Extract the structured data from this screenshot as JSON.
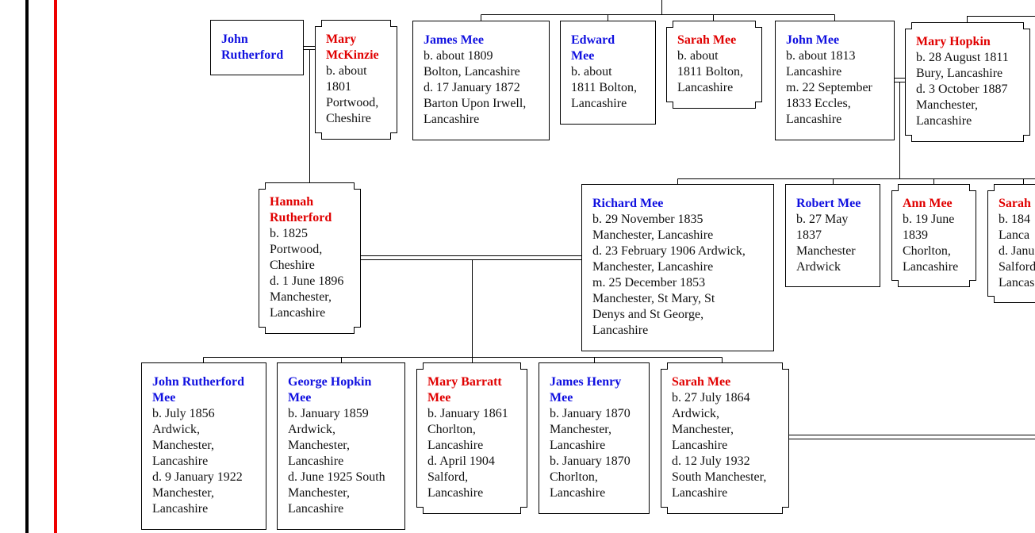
{
  "nodes": [
    {
      "name": "John Rutherford",
      "lines": []
    },
    {
      "name": "Mary McKinzie",
      "lines": [
        "b. about",
        "1801",
        "Portwood,",
        "Cheshire"
      ]
    },
    {
      "name": "James Mee",
      "lines": [
        "b. about 1809",
        "Bolton, Lancashire",
        "d. 17 January 1872",
        "Barton Upon Irwell,",
        "Lancashire"
      ]
    },
    {
      "name": "Edward Mee",
      "lines": [
        "b. about",
        "1811 Bolton,",
        "Lancashire"
      ]
    },
    {
      "name": "Sarah Mee",
      "lines": [
        "b. about",
        "1811 Bolton,",
        "Lancashire"
      ]
    },
    {
      "name": "John Mee",
      "lines": [
        "b. about 1813",
        "Lancashire",
        "m. 22 September",
        "1833 Eccles,",
        "Lancashire"
      ]
    },
    {
      "name": "Mary Hopkin",
      "lines": [
        "b. 28 August 1811",
        "Bury, Lancashire",
        "d. 3 October 1887",
        "Manchester,",
        "Lancashire"
      ]
    },
    {
      "name": "Hannah Rutherford",
      "lines": [
        "b. 1825",
        "Portwood,",
        "Cheshire",
        "d. 1 June 1896",
        "Manchester,",
        "Lancashire"
      ]
    },
    {
      "name": "Richard Mee",
      "lines": [
        "b. 29 November 1835",
        "Manchester, Lancashire",
        "d. 23 February 1906 Ardwick,",
        "Manchester, Lancashire",
        "m. 25 December 1853",
        "Manchester, St Mary, St",
        "Denys and St George,",
        "Lancashire"
      ]
    },
    {
      "name": "Robert Mee",
      "lines": [
        "b. 27 May",
        "1837",
        "Manchester",
        "Ardwick"
      ]
    },
    {
      "name": "Ann Mee",
      "lines": [
        "b. 19 June",
        "1839",
        "Chorlton,",
        "Lancashire"
      ]
    },
    {
      "name": "Sarah",
      "lines": [
        "b. 184",
        "Lanca",
        "d. Janu",
        "Salford",
        "Lancas"
      ]
    },
    {
      "name": "John Rutherford Mee",
      "lines": [
        "b. July 1856",
        "Ardwick,",
        "Manchester,",
        "Lancashire",
        "d. 9 January 1922",
        "Manchester,",
        "Lancashire"
      ]
    },
    {
      "name": "George Hopkin Mee",
      "lines": [
        "b. January 1859",
        "Ardwick,",
        "Manchester,",
        "Lancashire",
        "d. June 1925 South",
        "Manchester,",
        "Lancashire"
      ]
    },
    {
      "name": "Mary Barratt Mee",
      "lines": [
        "b. January 1861",
        "Chorlton,",
        "Lancashire",
        "d. April 1904",
        "Salford,",
        "Lancashire"
      ]
    },
    {
      "name": "James Henry Mee",
      "lines": [
        "b. January 1870",
        "Manchester,",
        "Lancashire",
        "b. January 1870",
        "Chorlton,",
        "Lancashire"
      ]
    },
    {
      "name": "Sarah Mee",
      "lines": [
        "b. 27 July 1864",
        "Ardwick,",
        "Manchester,",
        "Lancashire",
        "d. 12 July 1932",
        "South Manchester,",
        "Lancashire"
      ]
    }
  ]
}
